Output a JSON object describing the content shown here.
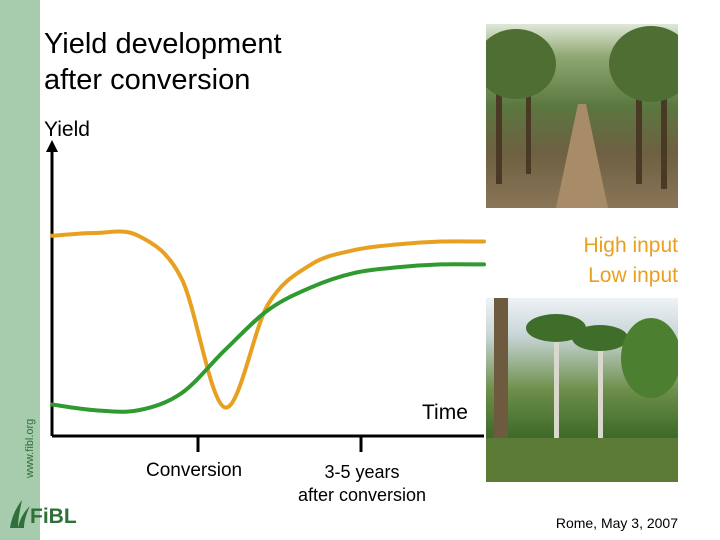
{
  "slide": {
    "title_lines": [
      "Yield development",
      "after conversion"
    ],
    "sidebar_url": "www.fibl.org",
    "logo_text": "FiBL",
    "footer": "Rome, May 3, 2007"
  },
  "colors": {
    "high_input": "#e8a020",
    "low_input": "#2f9a2f",
    "sidebar": "#a6ccad",
    "legend_text": "#e8a020"
  },
  "photos": [
    {
      "name": "orchard-path-photo"
    },
    {
      "name": "agroforestry-palms-photo"
    }
  ],
  "chart_data": {
    "type": "line",
    "xlabel": "Time",
    "ylabel": "Yield",
    "x_ticks": [
      {
        "label": "Conversion"
      },
      {
        "label": "3-5 years\nafter conversion"
      }
    ],
    "tick_label_lines": {
      "t1": [
        "Conversion"
      ],
      "t2": [
        "3-5 years",
        "after conversion"
      ]
    },
    "series": [
      {
        "name": "High input",
        "color": "#e8a020",
        "x": [
          0,
          1,
          2,
          3,
          4,
          5,
          6,
          7,
          8,
          9,
          10
        ],
        "y": [
          7.0,
          7.1,
          7.0,
          5.5,
          1.0,
          4.6,
          6.0,
          6.5,
          6.7,
          6.8,
          6.8
        ]
      },
      {
        "name": "Low input",
        "color": "#2f9a2f",
        "x": [
          0,
          1,
          2,
          3,
          4,
          5,
          6,
          7,
          8,
          9,
          10
        ],
        "y": [
          1.1,
          0.9,
          0.9,
          1.5,
          3.0,
          4.4,
          5.2,
          5.7,
          5.9,
          6.0,
          6.0
        ]
      }
    ],
    "xlim": [
      0,
      10
    ],
    "ylim": [
      0,
      10
    ],
    "grid": false
  }
}
